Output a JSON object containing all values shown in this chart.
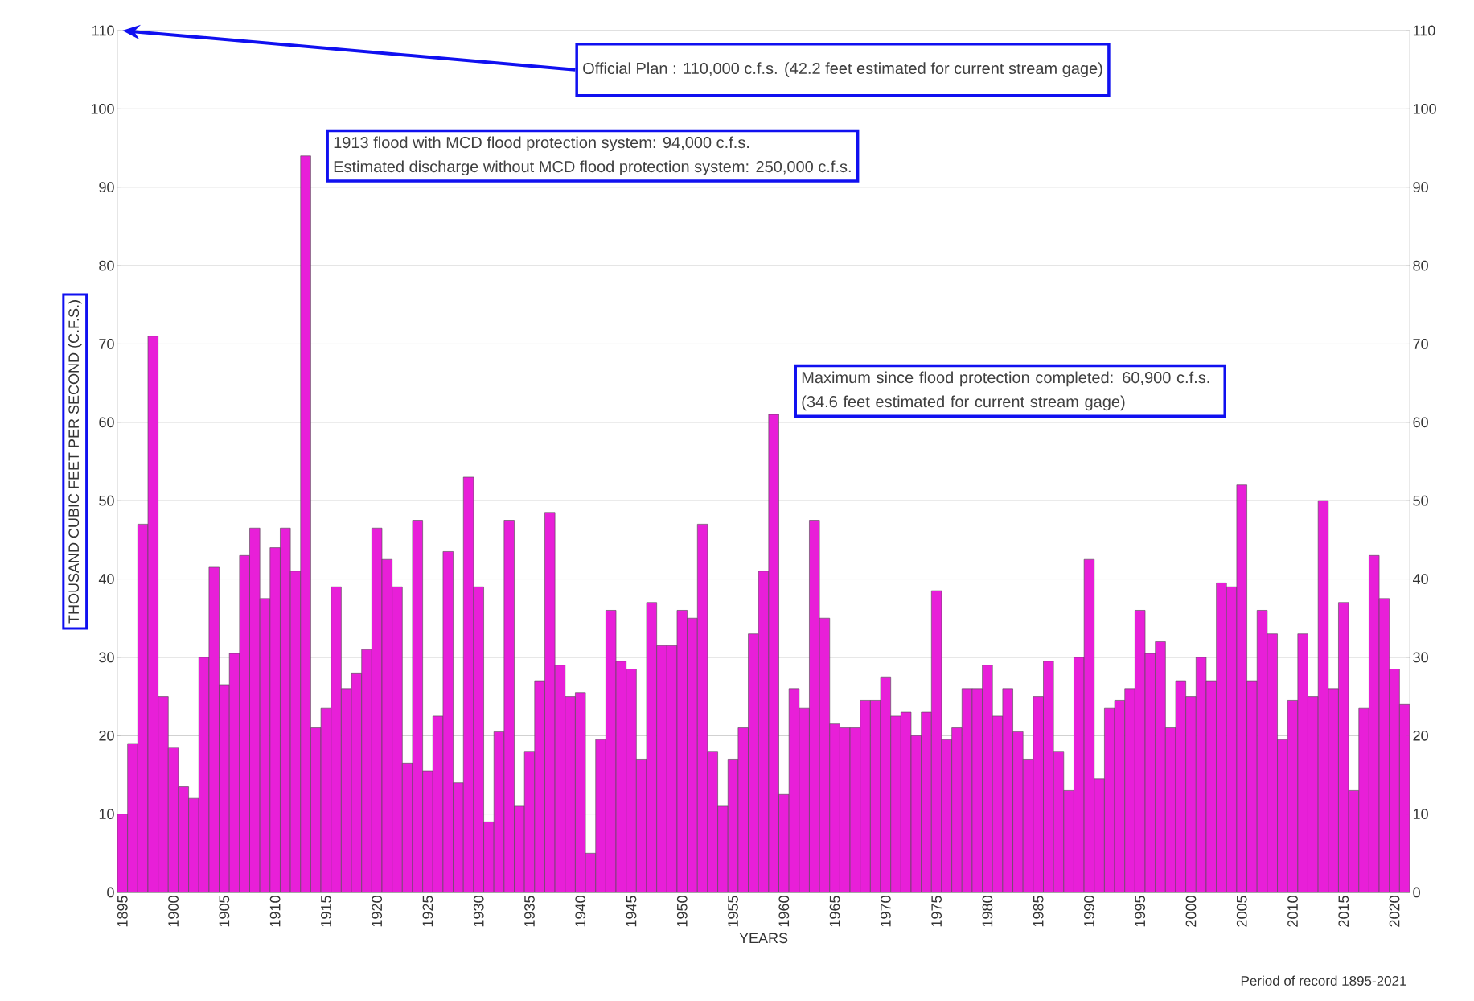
{
  "chart_data": {
    "type": "bar",
    "xlabel": "YEARS",
    "ylabel": "THOUSAND CUBIC FEET PER SECOND (C.F.S.)",
    "x": [
      1895,
      1896,
      1897,
      1898,
      1899,
      1900,
      1901,
      1902,
      1903,
      1904,
      1905,
      1906,
      1907,
      1908,
      1909,
      1910,
      1911,
      1912,
      1913,
      1914,
      1915,
      1916,
      1917,
      1918,
      1919,
      1920,
      1921,
      1922,
      1923,
      1924,
      1925,
      1926,
      1927,
      1928,
      1929,
      1930,
      1931,
      1932,
      1933,
      1934,
      1935,
      1936,
      1937,
      1938,
      1939,
      1940,
      1941,
      1942,
      1943,
      1944,
      1945,
      1946,
      1947,
      1948,
      1949,
      1950,
      1951,
      1952,
      1953,
      1954,
      1955,
      1956,
      1957,
      1958,
      1959,
      1960,
      1961,
      1962,
      1963,
      1964,
      1965,
      1966,
      1967,
      1968,
      1969,
      1970,
      1971,
      1972,
      1973,
      1974,
      1975,
      1976,
      1977,
      1978,
      1979,
      1980,
      1981,
      1982,
      1983,
      1984,
      1985,
      1986,
      1987,
      1988,
      1989,
      1990,
      1991,
      1992,
      1993,
      1994,
      1995,
      1996,
      1997,
      1998,
      1999,
      2000,
      2001,
      2002,
      2003,
      2004,
      2005,
      2006,
      2007,
      2008,
      2009,
      2010,
      2011,
      2012,
      2013,
      2014,
      2015,
      2016,
      2017,
      2018,
      2019,
      2020,
      2021
    ],
    "values": [
      10,
      19,
      47,
      71,
      25,
      18.5,
      13.5,
      12,
      30,
      41.5,
      26.5,
      30.5,
      43,
      46.5,
      37.5,
      44,
      46.5,
      41,
      94,
      21,
      23.5,
      39,
      26,
      28,
      31,
      46.5,
      42.5,
      39,
      16.5,
      47.5,
      15.5,
      22.5,
      43.5,
      14,
      53,
      39,
      9,
      20.5,
      47.5,
      11,
      18,
      27,
      48.5,
      29,
      25,
      25.5,
      5,
      19.5,
      36,
      29.5,
      28.5,
      17,
      37,
      31.5,
      31.5,
      36,
      35,
      47,
      18,
      11,
      17,
      21,
      33,
      41,
      61,
      12.5,
      26,
      23.5,
      47.5,
      35,
      21.5,
      21,
      21,
      24.5,
      24.5,
      27.5,
      22.5,
      23,
      20,
      23,
      38.5,
      19.5,
      21,
      26,
      26,
      29,
      22.5,
      26,
      20.5,
      17,
      25,
      29.5,
      18,
      13,
      30,
      42.5,
      14.5,
      23.5,
      24.5,
      26,
      36,
      30.5,
      32,
      21,
      27,
      25,
      30,
      27,
      39.5,
      39,
      52,
      27,
      36,
      33,
      19.5,
      24.5,
      33,
      25,
      50,
      26,
      37,
      13,
      23.5,
      43,
      37.5,
      28.5,
      24
    ],
    "color": "#e81fd8",
    "xlim": [
      1894.5,
      2021.5
    ],
    "xticks": [
      1895,
      1900,
      1905,
      1910,
      1915,
      1920,
      1925,
      1930,
      1935,
      1940,
      1945,
      1950,
      1955,
      1960,
      1965,
      1970,
      1975,
      1980,
      1985,
      1990,
      1995,
      2000,
      2005,
      2010,
      2015,
      2020
    ],
    "ylim": [
      0,
      110
    ],
    "yticks": [
      0,
      10,
      20,
      30,
      40,
      50,
      60,
      70,
      80,
      90,
      100,
      110
    ],
    "y2lim": [
      0,
      110
    ],
    "y2ticks": [
      0,
      10,
      20,
      30,
      40,
      50,
      60,
      70,
      80,
      90,
      100,
      110
    ],
    "grid": "y",
    "annotations": [
      "Official Plan : 110,000 c.f.s. (42.2 feet estimated for current stream gage)",
      "1913 flood with MCD flood protection system: 94,000 c.f.s.",
      "Estimated discharge without MCD flood protection system: 250,000 c.f.s.",
      "Maximum since flood protection completed: 60,900 c.f.s. (34.6 feet estimated for current stream gage)",
      "Period of record 1895-2021"
    ]
  }
}
